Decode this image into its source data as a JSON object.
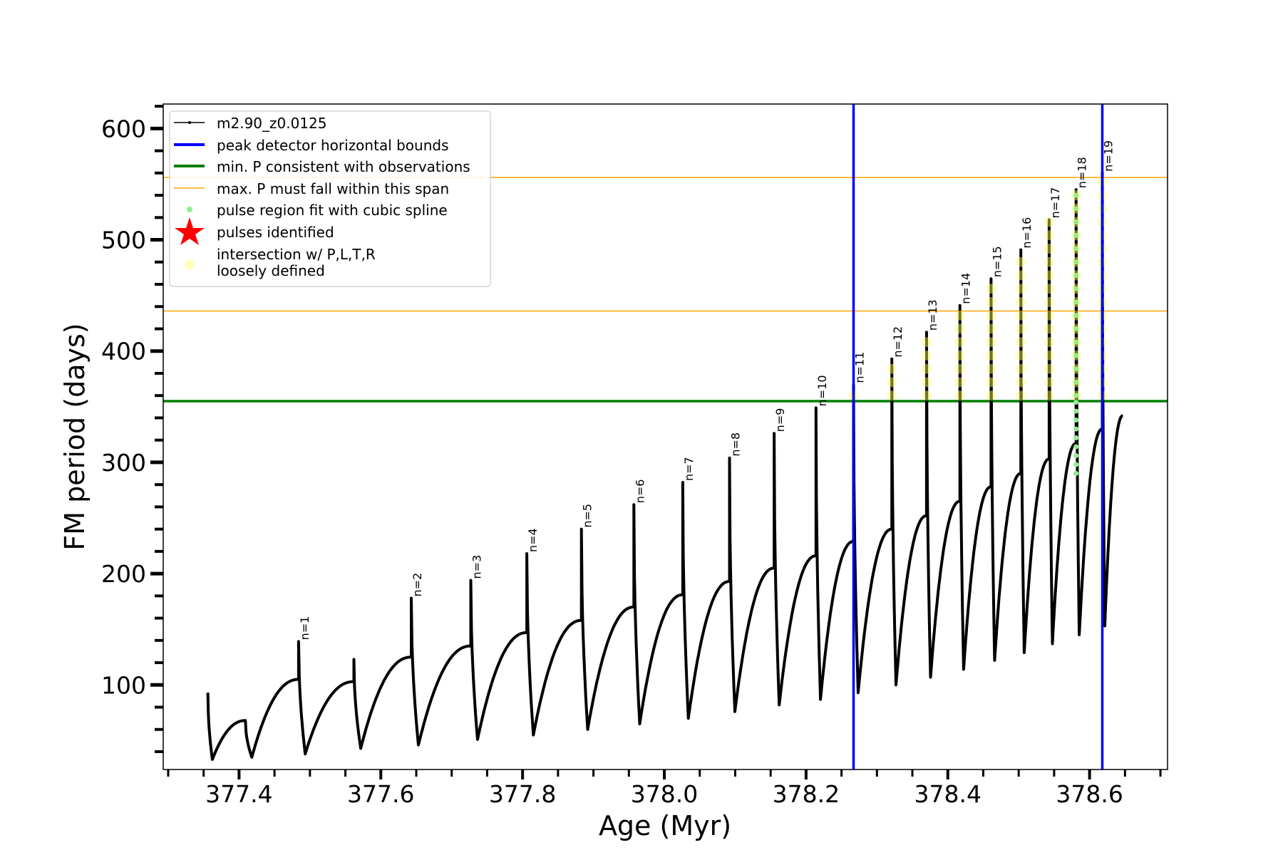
{
  "chart_data": {
    "type": "line",
    "xlabel": "Age (Myr)",
    "ylabel": "FM period (days)",
    "xlim": [
      377.293,
      378.71
    ],
    "ylim": [
      24,
      622
    ],
    "xticks": [
      377.4,
      377.6,
      377.8,
      378.0,
      378.2,
      378.4,
      378.6
    ],
    "xtick_labels": [
      "377.4",
      "377.6",
      "377.8",
      "378.0",
      "378.2",
      "378.4",
      "378.6"
    ],
    "yticks": [
      100,
      200,
      300,
      400,
      500,
      600
    ],
    "ytick_labels": [
      "100",
      "200",
      "300",
      "400",
      "500",
      "600"
    ],
    "grid": false,
    "legend_placement": "upper-left",
    "legend": [
      {
        "label": "m2.90_z0.0125",
        "kind": "line-marker",
        "color": "#000000"
      },
      {
        "label": "peak detector horizontal bounds",
        "kind": "thick-line",
        "color": "#0000ff"
      },
      {
        "label": "min. P consistent with observations",
        "kind": "thick-line",
        "color": "#008000"
      },
      {
        "label": "max. P must fall within this span",
        "kind": "thin-line",
        "color": "#ffa500"
      },
      {
        "label": "pulse region fit with cubic spline",
        "kind": "dot",
        "color": "#90ee90"
      },
      {
        "label": "pulses identified",
        "kind": "star",
        "color": "#ff0000"
      },
      {
        "label": "intersection w/ P,L,T,R",
        "label2": "loosely defined",
        "kind": "circle",
        "color": "#ffff99"
      }
    ],
    "vertical_lines": {
      "color": "#0000ff",
      "x": [
        378.267,
        378.618
      ]
    },
    "min_period_line": {
      "color": "#008000",
      "y": 355
    },
    "max_period_span": {
      "color": "#ffa500",
      "y": [
        436,
        556
      ]
    },
    "start": {
      "age": 377.356,
      "spike_top": 93,
      "min_after": 33
    },
    "pulses": [
      {
        "label": "",
        "age": 377.409,
        "pre_max": 68,
        "spike_top": 68,
        "min_after": 35
      },
      {
        "label": "n=1",
        "age": 377.484,
        "pre_max": 105,
        "spike_top": 139,
        "min_after": 38
      },
      {
        "label": "",
        "age": 377.562,
        "pre_max": 103,
        "spike_top": 123,
        "min_after": 43
      },
      {
        "label": "n=2",
        "age": 377.643,
        "pre_max": 125,
        "spike_top": 178,
        "min_after": 46
      },
      {
        "label": "n=3",
        "age": 377.727,
        "pre_max": 135,
        "spike_top": 194,
        "min_after": 51
      },
      {
        "label": "n=4",
        "age": 377.806,
        "pre_max": 147,
        "spike_top": 218,
        "min_after": 55
      },
      {
        "label": "n=5",
        "age": 377.883,
        "pre_max": 158,
        "spike_top": 240,
        "min_after": 60
      },
      {
        "label": "n=6",
        "age": 377.957,
        "pre_max": 170,
        "spike_top": 262,
        "min_after": 65
      },
      {
        "label": "n=7",
        "age": 378.026,
        "pre_max": 181,
        "spike_top": 282,
        "min_after": 70
      },
      {
        "label": "n=8",
        "age": 378.092,
        "pre_max": 193,
        "spike_top": 304,
        "min_after": 76
      },
      {
        "label": "n=9",
        "age": 378.155,
        "pre_max": 205,
        "spike_top": 326,
        "min_after": 82
      },
      {
        "label": "n=10",
        "age": 378.214,
        "pre_max": 216,
        "spike_top": 349,
        "min_after": 87
      },
      {
        "label": "n=11",
        "age": 378.267,
        "pre_max": 229,
        "spike_top": 370,
        "min_after": 93
      },
      {
        "label": "n=12",
        "age": 378.321,
        "pre_max": 240,
        "spike_top": 393,
        "min_after": 100
      },
      {
        "label": "n=13",
        "age": 378.37,
        "pre_max": 252,
        "spike_top": 417,
        "min_after": 107
      },
      {
        "label": "n=14",
        "age": 378.417,
        "pre_max": 265,
        "spike_top": 441,
        "min_after": 114
      },
      {
        "label": "n=15",
        "age": 378.461,
        "pre_max": 278,
        "spike_top": 465,
        "min_after": 122
      },
      {
        "label": "n=16",
        "age": 378.503,
        "pre_max": 290,
        "spike_top": 491,
        "min_after": 129
      },
      {
        "label": "n=17",
        "age": 378.543,
        "pre_max": 303,
        "spike_top": 518,
        "min_after": 137
      },
      {
        "label": "n=18",
        "age": 378.581,
        "pre_max": 317,
        "spike_top": 545,
        "min_after": 145
      },
      {
        "label": "n=19",
        "age": 378.618,
        "pre_max": 330,
        "spike_top": 560,
        "min_after": 153
      }
    ],
    "end": {
      "age": 378.647,
      "value": 342
    }
  }
}
